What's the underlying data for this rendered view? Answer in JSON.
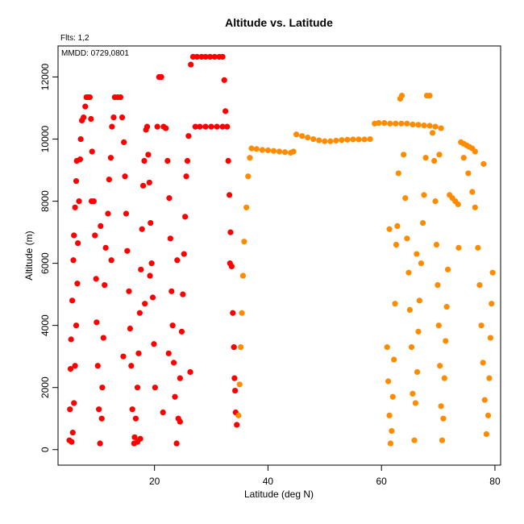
{
  "chart_data": {
    "type": "scatter",
    "title": "Altitude vs. Latitude",
    "xlabel": "Latitude (deg N)",
    "ylabel": "Altitude (m)",
    "xlim": [
      3,
      81
    ],
    "ylim": [
      -500,
      13000
    ],
    "x_ticks": [
      20,
      40,
      60,
      80
    ],
    "y_ticks": [
      0,
      2000,
      4000,
      6000,
      8000,
      10000,
      12000
    ],
    "annotations": [
      "Flts: 1,2",
      "MMDD: 0729,0801"
    ],
    "grid": false,
    "legend": "none",
    "series": [
      {
        "color": "#ff0000",
        "points": [
          [
            5,
            300
          ],
          [
            5.1,
            1300
          ],
          [
            5.2,
            2600
          ],
          [
            5.3,
            3550
          ],
          [
            5.5,
            4800
          ],
          [
            5.7,
            6100
          ],
          [
            5.8,
            6900
          ],
          [
            6,
            7800
          ],
          [
            6.2,
            8650
          ],
          [
            6.3,
            9300
          ],
          [
            5.4,
            250
          ],
          [
            5.6,
            550
          ],
          [
            5.8,
            1500
          ],
          [
            6,
            2700
          ],
          [
            6.2,
            4000
          ],
          [
            6.4,
            5350
          ],
          [
            6.5,
            6650
          ],
          [
            6.7,
            8000
          ],
          [
            6.9,
            9350
          ],
          [
            7,
            10000
          ],
          [
            7.2,
            10600
          ],
          [
            7.5,
            10700
          ],
          [
            7.8,
            11050
          ],
          [
            8,
            11350
          ],
          [
            8.3,
            11350
          ],
          [
            8.6,
            11350
          ],
          [
            8.8,
            10650
          ],
          [
            9,
            9600
          ],
          [
            9.3,
            8000
          ],
          [
            9.5,
            6900
          ],
          [
            9.7,
            5500
          ],
          [
            9.8,
            4100
          ],
          [
            10,
            2700
          ],
          [
            10.2,
            1300
          ],
          [
            10.4,
            200
          ],
          [
            10.7,
            1000
          ],
          [
            10.8,
            2000
          ],
          [
            11,
            3600
          ],
          [
            11.2,
            5300
          ],
          [
            11.4,
            6500
          ],
          [
            11.8,
            7600
          ],
          [
            12,
            8700
          ],
          [
            12.3,
            9400
          ],
          [
            12.5,
            10400
          ],
          [
            12.8,
            10700
          ],
          [
            13,
            11350
          ],
          [
            13.5,
            11350
          ],
          [
            14,
            11350
          ],
          [
            14.3,
            10700
          ],
          [
            14.6,
            9900
          ],
          [
            14.8,
            8800
          ],
          [
            15,
            7600
          ],
          [
            15.2,
            6400
          ],
          [
            15.5,
            5100
          ],
          [
            15.7,
            3900
          ],
          [
            15.9,
            2700
          ],
          [
            16.1,
            1300
          ],
          [
            16.4,
            200
          ],
          [
            16.7,
            1000
          ],
          [
            17,
            2000
          ],
          [
            17.2,
            3100
          ],
          [
            17.4,
            4400
          ],
          [
            17.6,
            5800
          ],
          [
            17.8,
            7100
          ],
          [
            18,
            8500
          ],
          [
            18.2,
            9300
          ],
          [
            18.5,
            10300
          ],
          [
            18.7,
            10400
          ],
          [
            18.9,
            9500
          ],
          [
            19.1,
            8600
          ],
          [
            19.3,
            7300
          ],
          [
            19.5,
            6000
          ],
          [
            19.7,
            4900
          ],
          [
            19.9,
            3400
          ],
          [
            20.1,
            2000
          ],
          [
            20.5,
            10400
          ],
          [
            20.8,
            12000
          ],
          [
            21.2,
            12000
          ],
          [
            21.6,
            10400
          ],
          [
            22,
            10350
          ],
          [
            22.3,
            9300
          ],
          [
            22.6,
            8100
          ],
          [
            22.8,
            6800
          ],
          [
            23,
            5100
          ],
          [
            23.2,
            4000
          ],
          [
            23.4,
            2800
          ],
          [
            23.6,
            1700
          ],
          [
            23.9,
            200
          ],
          [
            24.2,
            1000
          ],
          [
            24.5,
            2300
          ],
          [
            24.8,
            3800
          ],
          [
            25,
            5000
          ],
          [
            25.2,
            6300
          ],
          [
            25.4,
            7500
          ],
          [
            25.6,
            8800
          ],
          [
            25.8,
            9300
          ],
          [
            26,
            10100
          ],
          [
            26.4,
            12400
          ],
          [
            26.8,
            12650
          ],
          [
            27.5,
            12650
          ],
          [
            28.3,
            12650
          ],
          [
            29,
            12650
          ],
          [
            29.8,
            12650
          ],
          [
            30.6,
            12650
          ],
          [
            31.4,
            12650
          ],
          [
            32,
            12650
          ],
          [
            32.3,
            11900
          ],
          [
            32.5,
            10900
          ],
          [
            32.8,
            10400
          ],
          [
            33,
            9300
          ],
          [
            33.2,
            8200
          ],
          [
            33.4,
            7000
          ],
          [
            33.6,
            5900
          ],
          [
            33.8,
            4400
          ],
          [
            34,
            3300
          ],
          [
            34.1,
            2300
          ],
          [
            34.3,
            1200
          ],
          [
            34.5,
            800
          ],
          [
            27.2,
            10400
          ],
          [
            28,
            10400
          ],
          [
            29,
            10400
          ],
          [
            30,
            10400
          ],
          [
            31,
            10400
          ],
          [
            32,
            10400
          ],
          [
            33.3,
            6000
          ],
          [
            34.2,
            1900
          ],
          [
            16.5,
            400
          ],
          [
            17,
            250
          ],
          [
            17.5,
            350
          ],
          [
            24,
            6100
          ],
          [
            8.9,
            8000
          ],
          [
            12.4,
            6100
          ],
          [
            19.2,
            5600
          ],
          [
            22.5,
            3100
          ],
          [
            26.3,
            2500
          ],
          [
            10.5,
            7200
          ],
          [
            14.5,
            3000
          ],
          [
            18.3,
            4700
          ],
          [
            21.5,
            1200
          ],
          [
            24.5,
            900
          ]
        ]
      },
      {
        "color": "#ff8c00",
        "points": [
          [
            34.8,
            1100
          ],
          [
            35,
            2100
          ],
          [
            35.2,
            3300
          ],
          [
            35.4,
            4400
          ],
          [
            35.6,
            5600
          ],
          [
            35.8,
            6700
          ],
          [
            36.2,
            7800
          ],
          [
            36.5,
            8800
          ],
          [
            36.8,
            9400
          ],
          [
            37.1,
            9700
          ],
          [
            38,
            9680
          ],
          [
            39,
            9650
          ],
          [
            40,
            9640
          ],
          [
            41,
            9620
          ],
          [
            42,
            9600
          ],
          [
            43,
            9580
          ],
          [
            44,
            9560
          ],
          [
            44.5,
            9600
          ],
          [
            45,
            10150
          ],
          [
            46,
            10100
          ],
          [
            47,
            10050
          ],
          [
            48,
            10000
          ],
          [
            49,
            9960
          ],
          [
            50,
            9930
          ],
          [
            51,
            9930
          ],
          [
            52,
            9950
          ],
          [
            53,
            9970
          ],
          [
            54,
            9980
          ],
          [
            55,
            9990
          ],
          [
            56,
            9990
          ],
          [
            57,
            9990
          ],
          [
            58,
            10000
          ],
          [
            58.8,
            10500
          ],
          [
            59.5,
            10520
          ],
          [
            60.5,
            10520
          ],
          [
            61.5,
            10500
          ],
          [
            62.5,
            10500
          ],
          [
            63.5,
            10500
          ],
          [
            64.5,
            10500
          ],
          [
            65.5,
            10470
          ],
          [
            66.5,
            10460
          ],
          [
            67.5,
            10440
          ],
          [
            68.5,
            10430
          ],
          [
            69.5,
            10400
          ],
          [
            70.5,
            10350
          ],
          [
            61,
            3300
          ],
          [
            61.2,
            2200
          ],
          [
            61.4,
            1100
          ],
          [
            61.6,
            200
          ],
          [
            61.8,
            600
          ],
          [
            62,
            1700
          ],
          [
            62.2,
            2900
          ],
          [
            62.4,
            4700
          ],
          [
            62.6,
            6600
          ],
          [
            62.8,
            7200
          ],
          [
            63,
            8900
          ],
          [
            63.3,
            11300
          ],
          [
            63.6,
            11400
          ],
          [
            63.9,
            9500
          ],
          [
            64.2,
            8100
          ],
          [
            64.5,
            6800
          ],
          [
            64.8,
            5700
          ],
          [
            65,
            4500
          ],
          [
            65.3,
            3300
          ],
          [
            65.5,
            1800
          ],
          [
            65.8,
            300
          ],
          [
            66,
            1500
          ],
          [
            66.3,
            2500
          ],
          [
            66.5,
            3800
          ],
          [
            66.7,
            4800
          ],
          [
            67,
            6000
          ],
          [
            67.3,
            7300
          ],
          [
            67.5,
            8200
          ],
          [
            67.8,
            9400
          ],
          [
            68,
            11400
          ],
          [
            68.5,
            11400
          ],
          [
            69,
            10200
          ],
          [
            69.3,
            9300
          ],
          [
            69.5,
            8000
          ],
          [
            69.7,
            6600
          ],
          [
            69.9,
            5300
          ],
          [
            70.1,
            4000
          ],
          [
            70.3,
            2700
          ],
          [
            70.5,
            1400
          ],
          [
            70.7,
            300
          ],
          [
            70.9,
            1000
          ],
          [
            71.1,
            2300
          ],
          [
            71.3,
            3500
          ],
          [
            71.5,
            4600
          ],
          [
            71.7,
            5800
          ],
          [
            72,
            8200
          ],
          [
            72.5,
            8100
          ],
          [
            73,
            8000
          ],
          [
            73.5,
            7900
          ],
          [
            74,
            9900
          ],
          [
            74.5,
            9850
          ],
          [
            75,
            9800
          ],
          [
            75.5,
            9750
          ],
          [
            76,
            9700
          ],
          [
            76.5,
            9600
          ],
          [
            74.5,
            9400
          ],
          [
            75.3,
            8900
          ],
          [
            76,
            8300
          ],
          [
            76.5,
            7800
          ],
          [
            77,
            6500
          ],
          [
            77.3,
            5300
          ],
          [
            77.6,
            4000
          ],
          [
            77.9,
            2800
          ],
          [
            78.2,
            1600
          ],
          [
            78.5,
            500
          ],
          [
            78.8,
            1100
          ],
          [
            79,
            2300
          ],
          [
            79.2,
            3600
          ],
          [
            79.4,
            4700
          ],
          [
            79.6,
            5700
          ],
          [
            61.4,
            7100
          ],
          [
            66.2,
            6300
          ],
          [
            70.2,
            9500
          ],
          [
            73.6,
            6500
          ],
          [
            78,
            9200
          ]
        ]
      }
    ]
  }
}
